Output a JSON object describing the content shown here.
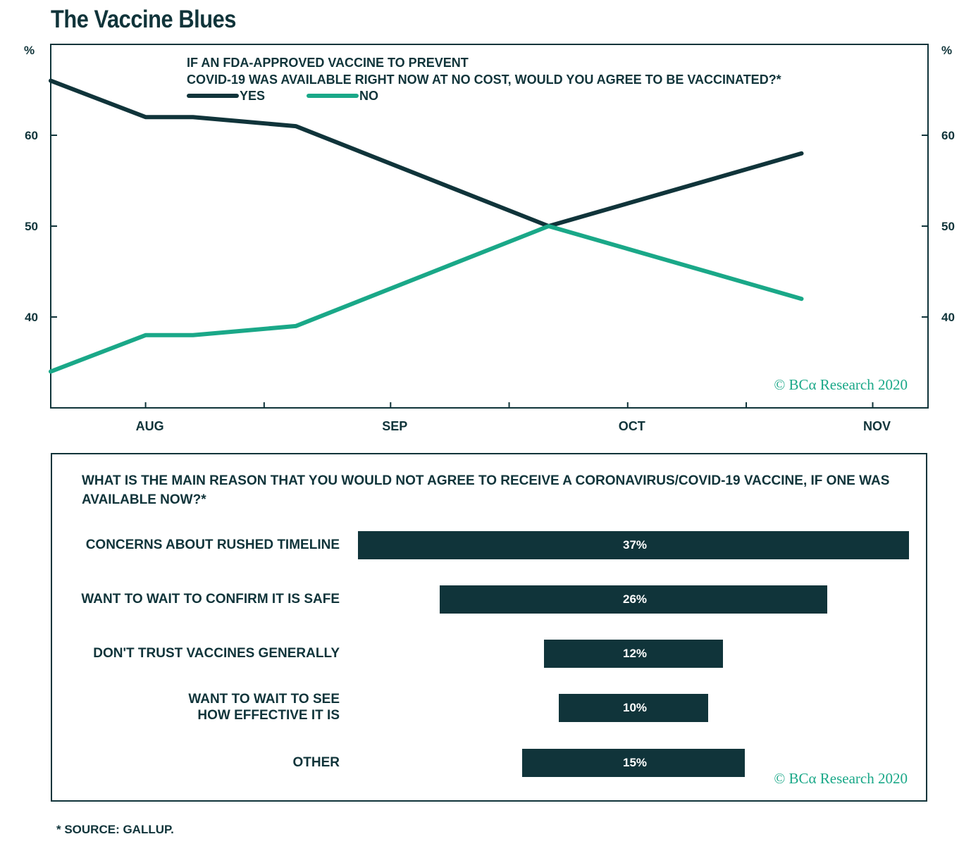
{
  "title": "The Vaccine Blues",
  "footnote": "* SOURCE: GALLUP.",
  "chart_data": [
    {
      "type": "line",
      "title": "IF AN FDA-APPROVED VACCINE TO PREVENT COVID-19 WAS AVAILABLE RIGHT NOW AT NO COST, WOULD YOU AGREE TO BE VACCINATED?*",
      "title_lines": [
        "IF AN FDA-APPROVED VACCINE TO PREVENT",
        "COVID-19 WAS AVAILABLE RIGHT NOW AT NO COST, WOULD YOU AGREE TO BE VACCINATED?*"
      ],
      "x": [
        "2020-07-20",
        "2020-08-01",
        "2020-08-07",
        "2020-08-20",
        "2020-09-21",
        "2020-10-23"
      ],
      "x_ticks": [
        "AUG",
        "SEP",
        "OCT",
        "NOV"
      ],
      "xlim": [
        "2020-07-20",
        "2020-11-08"
      ],
      "ylabel_left": "%",
      "ylabel_right": "%",
      "y_ticks": [
        40,
        50,
        60
      ],
      "ylim": [
        30,
        70
      ],
      "series": [
        {
          "name": "YES",
          "color": "#10343a",
          "values": [
            66,
            62,
            62,
            61,
            50,
            58
          ]
        },
        {
          "name": "NO",
          "color": "#1aa888",
          "values": [
            34,
            38,
            38,
            39,
            50,
            42
          ]
        }
      ],
      "legend": "top",
      "grid": false,
      "credit": "© BCα Research 2020"
    },
    {
      "type": "bar",
      "orientation": "horizontal",
      "title": "WHAT IS THE MAIN REASON THAT YOU WOULD NOT AGREE TO RECEIVE A CORONAVIRUS/COVID-19 VACCINE, IF ONE WAS AVAILABLE NOW?*",
      "categories": [
        "CONCERNS ABOUT RUSHED TIMELINE",
        "WANT TO WAIT TO CONFIRM IT IS SAFE",
        "DON'T TRUST VACCINES GENERALLY",
        "WANT TO WAIT TO SEE\nHOW EFFECTIVE IT IS",
        "OTHER"
      ],
      "values": [
        37,
        26,
        12,
        10,
        15
      ],
      "value_labels": [
        "37%",
        "26%",
        "12%",
        "10%",
        "15%"
      ],
      "unit": "%",
      "bar_color": "#10343a",
      "credit": "© BCα Research 2020"
    }
  ]
}
